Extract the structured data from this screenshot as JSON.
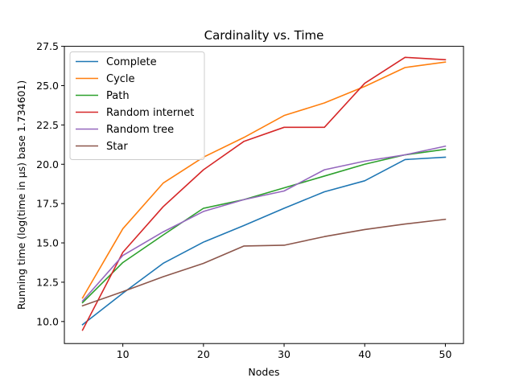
{
  "chart_data": {
    "type": "line",
    "title": "Cardinality vs. Time",
    "xlabel": "Nodes",
    "ylabel": "Running time (log(time in μs) base 1.734601)",
    "x": [
      5,
      10,
      15,
      20,
      25,
      30,
      35,
      40,
      45,
      50
    ],
    "xlim": [
      2.75,
      52.25
    ],
    "ylim": [
      8.6,
      27.5
    ],
    "xticks": [
      10,
      20,
      30,
      40,
      50
    ],
    "yticks": [
      10.0,
      12.5,
      15.0,
      17.5,
      20.0,
      22.5,
      25.0,
      27.5
    ],
    "xtick_labels": [
      "10",
      "20",
      "30",
      "40",
      "50"
    ],
    "ytick_labels": [
      "10.0",
      "12.5",
      "15.0",
      "17.5",
      "20.0",
      "22.5",
      "25.0",
      "27.5"
    ],
    "grid": false,
    "legend_position": "upper-left",
    "series": [
      {
        "name": "Complete",
        "color": "#1f77b4",
        "values": [
          9.8,
          11.8,
          13.7,
          15.05,
          16.1,
          17.2,
          18.25,
          18.95,
          20.3,
          20.45
        ]
      },
      {
        "name": "Cycle",
        "color": "#ff7f0e",
        "values": [
          11.5,
          15.9,
          18.8,
          20.45,
          21.7,
          23.1,
          23.9,
          24.95,
          26.15,
          26.5
        ]
      },
      {
        "name": "Path",
        "color": "#2ca02c",
        "values": [
          11.2,
          13.75,
          15.5,
          17.2,
          17.75,
          18.5,
          19.25,
          20.0,
          20.6,
          20.95
        ]
      },
      {
        "name": "Random internet",
        "color": "#d62728",
        "values": [
          9.45,
          14.4,
          17.3,
          19.65,
          21.45,
          22.35,
          22.35,
          25.15,
          26.8,
          26.65
        ]
      },
      {
        "name": "Random tree",
        "color": "#9467bd",
        "values": [
          11.3,
          14.2,
          15.7,
          17.0,
          17.75,
          18.3,
          19.65,
          20.2,
          20.6,
          21.15
        ]
      },
      {
        "name": "Star",
        "color": "#8c564b",
        "values": [
          11.0,
          11.9,
          12.85,
          13.7,
          14.8,
          14.85,
          15.4,
          15.85,
          16.2,
          16.5
        ]
      }
    ]
  }
}
